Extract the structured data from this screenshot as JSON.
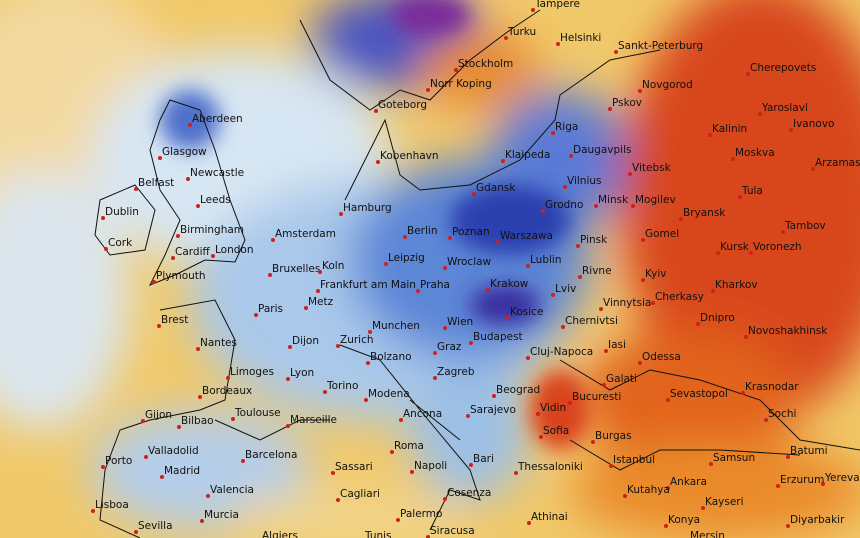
{
  "cities": [
    "Tampere",
    "Helsinki",
    "Sankt-Peterburg",
    "Cherepovets",
    "Turku",
    "Stockholm",
    "Norr Koping",
    "Novgorod",
    "Goteborg",
    "Pskov",
    "Yaroslavl",
    "Ivanovo",
    "Aberdeen",
    "Riga",
    "Kalinin",
    "Klaipeda",
    "Daugavpils",
    "Moskva",
    "Arzamas",
    "Kobenhavn",
    "Glasgow",
    "Vitebsk",
    "Newcastle",
    "Belfast",
    "Vilnius",
    "Gdansk",
    "Minsk",
    "Mogilev",
    "Tula",
    "Leeds",
    "Dublin",
    "Hamburg",
    "Bryansk",
    "Tambov",
    "Grodno",
    "Birmingham",
    "Amsterdam",
    "Berlin",
    "Poznan",
    "Warszawa",
    "Gomel",
    "Kursk",
    "Voronezh",
    "Cork",
    "Cardiff",
    "London",
    "Pinsk",
    "Plymouth",
    "Leipzig",
    "Wroclaw",
    "Lublin",
    "Rivne",
    "Kyiv",
    "Bruxelles",
    "Koln",
    "Frankfurt am Main",
    "Praha",
    "Krakow",
    "Lviv",
    "Kharkov",
    "Vinnytsia",
    "Cherkasy",
    "Paris",
    "Metz",
    "Brest",
    "Wien",
    "Kosice",
    "Chernivtsi",
    "Dnipro",
    "Munchen",
    "Novoshakhinsk",
    "Nantes",
    "Zurich",
    "Budapest",
    "Cluj-Napoca",
    "Dijon",
    "Iasi",
    "Graz",
    "Odessa",
    "Bolzano",
    "Zagreb",
    "Limoges",
    "Lyon",
    "Galati",
    "Krasnodar",
    "Bordeaux",
    "Torino",
    "Modena",
    "Beograd",
    "Sevastopol",
    "Bucuresti",
    "Toulouse",
    "Marseille",
    "Ancona",
    "Gijon",
    "Bilbao",
    "Sarajevo",
    "Vidin",
    "Sochi",
    "Valladolid",
    "Barcelona",
    "Roma",
    "Sofia",
    "Burgas",
    "Istanbul",
    "Porto",
    "Batumi",
    "Bari",
    "Samsun",
    "Madrid",
    "Napoli",
    "Sassari",
    "Thessaloniki",
    "Yereva",
    "Ankara",
    "Erzurum",
    "Valencia",
    "Kutahya",
    "Cagliari",
    "Cosenza",
    "Lisboa",
    "Murcia",
    "Kayseri",
    "Palermo",
    "Athinai",
    "Konya",
    "Diyarbakir",
    "Sevilla",
    "Algiers",
    "Tunis",
    "Siracusa",
    "Mersin"
  ]
}
